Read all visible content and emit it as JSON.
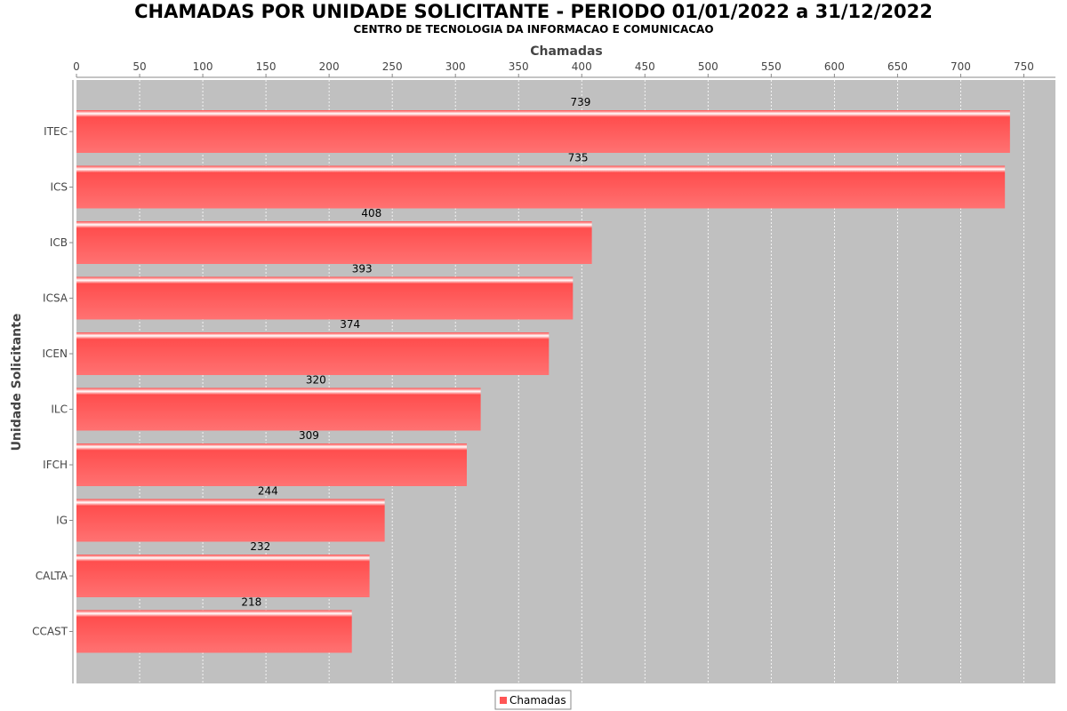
{
  "chart_data": {
    "type": "bar",
    "orientation": "horizontal",
    "title": "CHAMADAS POR UNIDADE SOLICITANTE - PERIODO 01/01/2022 a 31/12/2022",
    "subtitle": "CENTRO DE TECNOLOGIA DA INFORMACAO E COMUNICACAO",
    "xlabel": "Chamadas",
    "ylabel": "Unidade Solicitante",
    "xlim": [
      0,
      775
    ],
    "xticks": [
      0,
      50,
      100,
      150,
      200,
      250,
      300,
      350,
      400,
      450,
      500,
      550,
      600,
      650,
      700,
      750
    ],
    "categories": [
      "ITEC",
      "ICS",
      "ICB",
      "ICSA",
      "ICEN",
      "ILC",
      "IFCH",
      "IG",
      "CALTA",
      "CCAST"
    ],
    "series": [
      {
        "name": "Chamadas",
        "values": [
          739,
          735,
          408,
          393,
          374,
          320,
          309,
          244,
          232,
          218
        ]
      }
    ],
    "data_labels": true,
    "grid": true,
    "legend_position": "bottom",
    "colors": {
      "bar": "#ff5555",
      "plot_background": "#c0c0c0",
      "grid": "#ffffff"
    }
  }
}
